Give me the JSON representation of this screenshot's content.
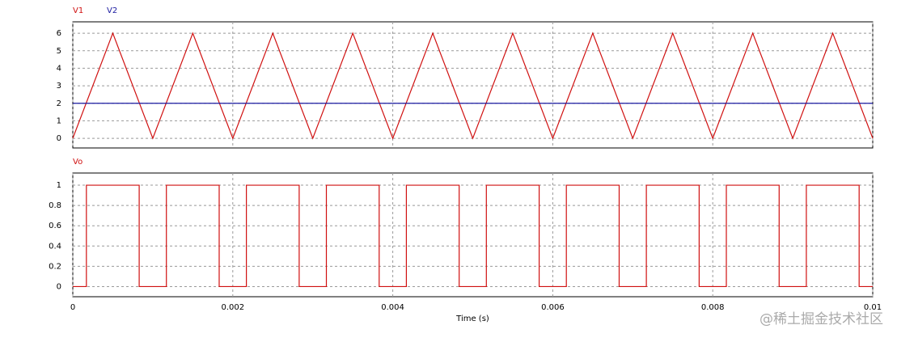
{
  "chart_data": [
    {
      "type": "line",
      "series": [
        {
          "name": "V1",
          "color": "#d01010",
          "x": [
            0,
            0.0005,
            0.001,
            0.0015,
            0.002,
            0.0025,
            0.003,
            0.0035,
            0.004,
            0.0045,
            0.005,
            0.0055,
            0.006,
            0.0065,
            0.007,
            0.0075,
            0.008,
            0.0085,
            0.009,
            0.0095,
            0.01
          ],
          "values": [
            0,
            6,
            0,
            6,
            0,
            6,
            0,
            6,
            0,
            6,
            0,
            6,
            0,
            6,
            0,
            6,
            0,
            6,
            0,
            6,
            0
          ]
        },
        {
          "name": "V2",
          "color": "#1a1aa0",
          "x": [
            0,
            0.01
          ],
          "values": [
            2,
            2
          ]
        }
      ],
      "xlim": [
        0,
        0.01
      ],
      "xticks": [
        0,
        0.002,
        0.004,
        0.006,
        0.008,
        0.01
      ],
      "ylim": [
        -0.55,
        6.65
      ],
      "yticks": [
        0,
        1,
        2,
        3,
        4,
        5,
        6
      ],
      "grid": true
    },
    {
      "type": "line",
      "x_label": "Time (s)",
      "series": [
        {
          "name": "Vo",
          "color": "#d01010",
          "x": [
            0,
            0.00017,
            0.00017,
            0.00083,
            0.00083,
            0.00117,
            0.00117,
            0.00183,
            0.00183,
            0.00217,
            0.00217,
            0.00283,
            0.00283,
            0.00317,
            0.00317,
            0.00383,
            0.00383,
            0.00417,
            0.00417,
            0.00483,
            0.00483,
            0.00517,
            0.00517,
            0.00583,
            0.00583,
            0.00617,
            0.00617,
            0.00683,
            0.00683,
            0.00717,
            0.00717,
            0.00783,
            0.00783,
            0.00817,
            0.00817,
            0.00883,
            0.00883,
            0.00917,
            0.00917,
            0.00983,
            0.00983,
            0.01
          ],
          "values": [
            0,
            0,
            1,
            1,
            0,
            0,
            1,
            1,
            0,
            0,
            1,
            1,
            0,
            0,
            1,
            1,
            0,
            0,
            1,
            1,
            0,
            0,
            1,
            1,
            0,
            0,
            1,
            1,
            0,
            0,
            1,
            1,
            0,
            0,
            1,
            1,
            0,
            0,
            1,
            1,
            0,
            0
          ]
        }
      ],
      "xlim": [
        0,
        0.01
      ],
      "xticks": [
        0,
        0.002,
        0.004,
        0.006,
        0.008,
        0.01
      ],
      "ylim": [
        -0.1,
        1.12
      ],
      "yticks": [
        0,
        0.2,
        0.4,
        0.6,
        0.8,
        1
      ],
      "grid": true
    }
  ],
  "watermark": "@稀土掘金技术社区"
}
